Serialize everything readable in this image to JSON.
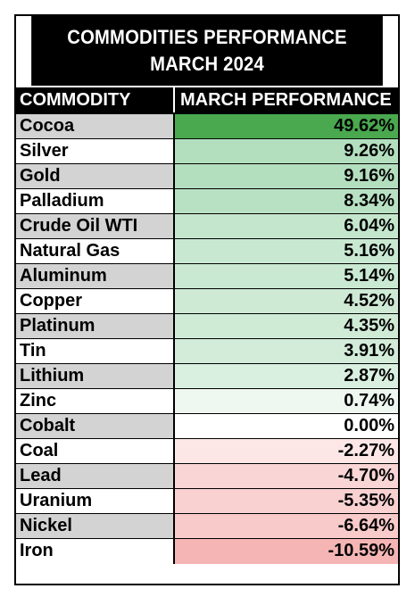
{
  "chart_data": {
    "type": "table",
    "title_line1": "COMMODITIES PERFORMANCE",
    "title_line2": "MARCH 2024",
    "columns": [
      "COMMODITY",
      "MARCH PERFORMANCE"
    ],
    "rows": [
      {
        "commodity": "Cocoa",
        "display": "49.62%",
        "value": 49.62
      },
      {
        "commodity": "Silver",
        "display": "9.26%",
        "value": 9.26
      },
      {
        "commodity": "Gold",
        "display": "9.16%",
        "value": 9.16
      },
      {
        "commodity": "Palladium",
        "display": "8.34%",
        "value": 8.34
      },
      {
        "commodity": "Crude Oil WTI",
        "display": "6.04%",
        "value": 6.04
      },
      {
        "commodity": "Natural Gas",
        "display": "5.16%",
        "value": 5.16
      },
      {
        "commodity": "Aluminum",
        "display": "5.14%",
        "value": 5.14
      },
      {
        "commodity": "Copper",
        "display": "4.52%",
        "value": 4.52
      },
      {
        "commodity": "Platinum",
        "display": "4.35%",
        "value": 4.35
      },
      {
        "commodity": "Tin",
        "display": "3.91%",
        "value": 3.91
      },
      {
        "commodity": "Lithium",
        "display": "2.87%",
        "value": 2.87
      },
      {
        "commodity": "Zinc",
        "display": "0.74%",
        "value": 0.74
      },
      {
        "commodity": "Cobalt",
        "display": "0.00%",
        "value": 0.0
      },
      {
        "commodity": "Coal",
        "display": "-2.27%",
        "value": -2.27
      },
      {
        "commodity": "Lead",
        "display": "-4.70%",
        "value": -4.7
      },
      {
        "commodity": "Uranium",
        "display": "-5.35%",
        "value": -5.35
      },
      {
        "commodity": "Nickel",
        "display": "-6.64%",
        "value": -6.64
      },
      {
        "commodity": "Iron",
        "display": "-10.59%",
        "value": -10.59
      }
    ],
    "colors": {
      "top": "#4aa84e",
      "positive": "#b3dfbf",
      "neutral": "#ffffff",
      "negative": "#f5b5b5"
    }
  }
}
